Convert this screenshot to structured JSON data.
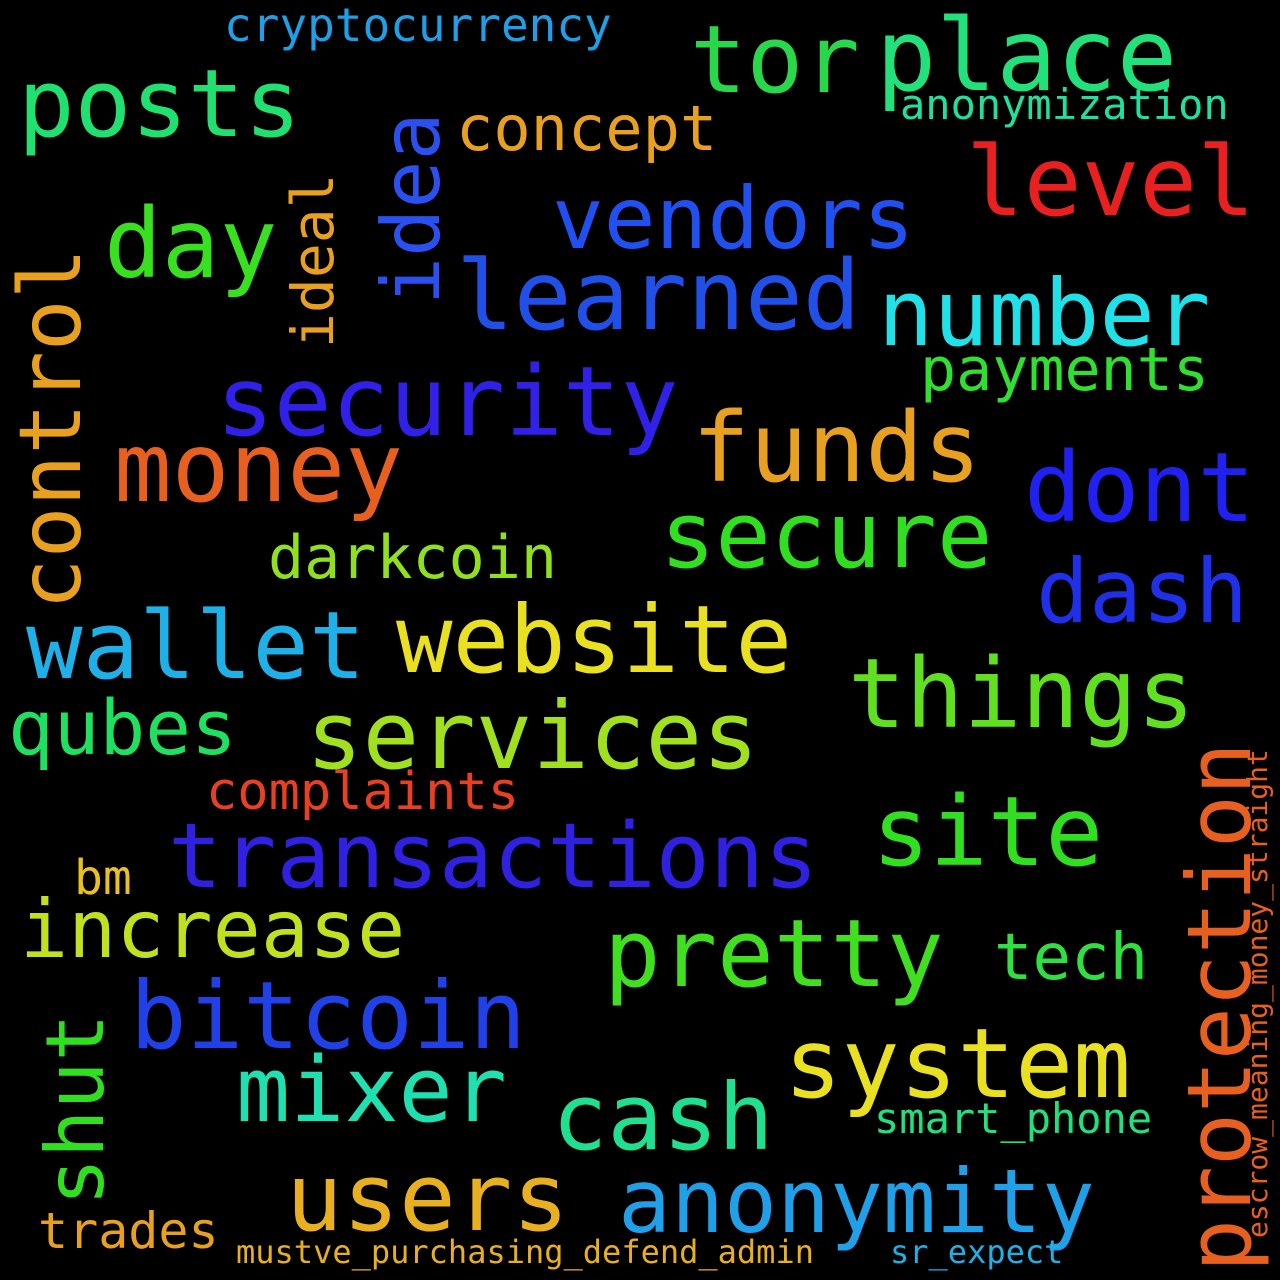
{
  "words": [
    {
      "key": "cryptocurrency",
      "text": "cryptocurrency",
      "color": "#1ea0e8"
    },
    {
      "key": "place",
      "text": "place",
      "color": "#22e07a"
    },
    {
      "key": "tor",
      "text": "tor",
      "color": "#28d84a"
    },
    {
      "key": "posts",
      "text": "posts",
      "color": "#20e070"
    },
    {
      "key": "idea",
      "text": "idea",
      "color": "#2a50f0"
    },
    {
      "key": "concept",
      "text": "concept",
      "color": "#e8a020"
    },
    {
      "key": "anonymization",
      "text": "anonymization",
      "color": "#20e0a0"
    },
    {
      "key": "level",
      "text": "level",
      "color": "#e82020"
    },
    {
      "key": "vendors",
      "text": "vendors",
      "color": "#2050f0"
    },
    {
      "key": "day",
      "text": "day",
      "color": "#38e020"
    },
    {
      "key": "ideal",
      "text": "ideal",
      "color": "#e8a020"
    },
    {
      "key": "control",
      "text": "control",
      "color": "#e8a020"
    },
    {
      "key": "learned",
      "text": "learned",
      "color": "#2050e8"
    },
    {
      "key": "number",
      "text": "number",
      "color": "#20e0e8"
    },
    {
      "key": "payments",
      "text": "payments",
      "color": "#30e030"
    },
    {
      "key": "security",
      "text": "security",
      "color": "#3020e8"
    },
    {
      "key": "money",
      "text": "money",
      "color": "#e86020"
    },
    {
      "key": "funds",
      "text": "funds",
      "color": "#e8a020"
    },
    {
      "key": "dont",
      "text": "dont",
      "color": "#2020f0"
    },
    {
      "key": "secure",
      "text": "secure",
      "color": "#30e020"
    },
    {
      "key": "darkcoin",
      "text": "darkcoin",
      "color": "#90e020"
    },
    {
      "key": "dash",
      "text": "dash",
      "color": "#2030e8"
    },
    {
      "key": "wallet",
      "text": "wallet",
      "color": "#20b0e8"
    },
    {
      "key": "website",
      "text": "website",
      "color": "#e8e020"
    },
    {
      "key": "things",
      "text": "things",
      "color": "#60e020"
    },
    {
      "key": "qubes",
      "text": "qubes",
      "color": "#20e060"
    },
    {
      "key": "services",
      "text": "services",
      "color": "#a0e020"
    },
    {
      "key": "protection",
      "text": "protection",
      "color": "#e86020"
    },
    {
      "key": "complaints",
      "text": "complaints",
      "color": "#e84020"
    },
    {
      "key": "escrow",
      "text": "escrow_meaning_money_straight",
      "color": "#e86020"
    },
    {
      "key": "site",
      "text": "site",
      "color": "#30e020"
    },
    {
      "key": "transactions",
      "text": "transactions",
      "color": "#3020e0"
    },
    {
      "key": "bm",
      "text": "bm",
      "color": "#e8c020"
    },
    {
      "key": "increase",
      "text": "increase",
      "color": "#c0e020"
    },
    {
      "key": "shut",
      "text": "shut",
      "color": "#30e020"
    },
    {
      "key": "pretty",
      "text": "pretty",
      "color": "#40e020"
    },
    {
      "key": "tech",
      "text": "tech",
      "color": "#30e040"
    },
    {
      "key": "bitcoin",
      "text": "bitcoin",
      "color": "#2040e8"
    },
    {
      "key": "system",
      "text": "system",
      "color": "#e8e020"
    },
    {
      "key": "mixer",
      "text": "mixer",
      "color": "#20e0b0"
    },
    {
      "key": "cash",
      "text": "cash",
      "color": "#20e090"
    },
    {
      "key": "smart_phone",
      "text": "smart_phone",
      "color": "#20e080"
    },
    {
      "key": "users",
      "text": "users",
      "color": "#e8b020"
    },
    {
      "key": "anonymity",
      "text": "anonymity",
      "color": "#20a0e8"
    },
    {
      "key": "trades",
      "text": "trades",
      "color": "#e8a020"
    },
    {
      "key": "mustve",
      "text": "mustve_purchasing_defend_admin",
      "color": "#e8b020"
    },
    {
      "key": "sr_expect",
      "text": "sr_expect",
      "color": "#20b0e8"
    }
  ]
}
